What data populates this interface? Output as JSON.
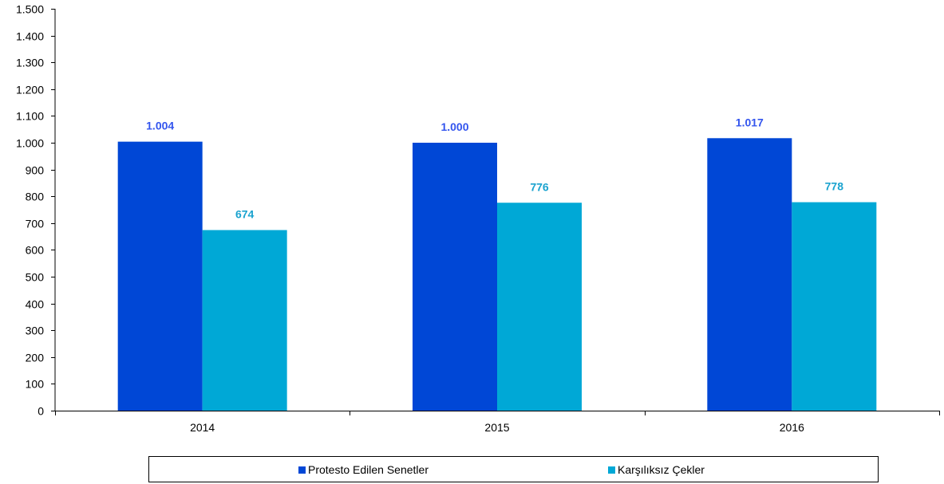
{
  "chart_data": {
    "type": "bar",
    "title": "",
    "xlabel": "",
    "ylabel": "",
    "categories": [
      "2014",
      "2015",
      "2016"
    ],
    "ylim": [
      0,
      1500
    ],
    "yticks": [
      0,
      100,
      200,
      300,
      400,
      500,
      600,
      700,
      800,
      900,
      1000,
      1100,
      1200,
      1300,
      1400,
      1500
    ],
    "ytick_labels": [
      "0",
      "100",
      "200",
      "300",
      "400",
      "500",
      "600",
      "700",
      "800",
      "900",
      "1.000",
      "1.100",
      "1.200",
      "1.300",
      "1.400",
      "1.500"
    ],
    "grid": false,
    "legend_position": "bottom",
    "series": [
      {
        "name": "Protesto Edilen Senetler",
        "color": "#0047D6",
        "label_color": "#3355EE",
        "values": [
          1004,
          1000,
          1017
        ],
        "labels": [
          "1.004",
          "1.000",
          "1.017"
        ]
      },
      {
        "name": "Karşılıksız Çekler",
        "color": "#00A8D6",
        "label_color": "#1BA3CF",
        "values": [
          674,
          776,
          778
        ],
        "labels": [
          "674",
          "776",
          "778"
        ]
      }
    ]
  }
}
